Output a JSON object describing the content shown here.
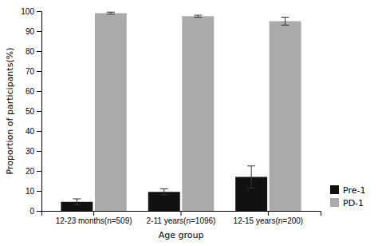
{
  "chart_data": {
    "type": "bar",
    "categories": [
      "12-23 months(n=509)",
      "2-11 years(n=1096)",
      "12-15 years(n=200)"
    ],
    "series": [
      {
        "name": "Pre-1",
        "color": "#111111",
        "values": [
          4.5,
          9.5,
          17.0
        ],
        "errors": [
          1.5,
          1.5,
          5.5
        ]
      },
      {
        "name": "PD-1",
        "color": "#aaaaaa",
        "values": [
          99.0,
          97.5,
          95.0
        ],
        "errors": [
          0.5,
          0.5,
          2.0
        ]
      }
    ],
    "xlabel": "Age group",
    "ylabel": "Proportion of participants(%)",
    "ylim": [
      0,
      100
    ],
    "yticks": [
      0,
      10,
      20,
      30,
      40,
      50,
      60,
      70,
      80,
      90,
      100
    ],
    "legend": "lower right"
  }
}
